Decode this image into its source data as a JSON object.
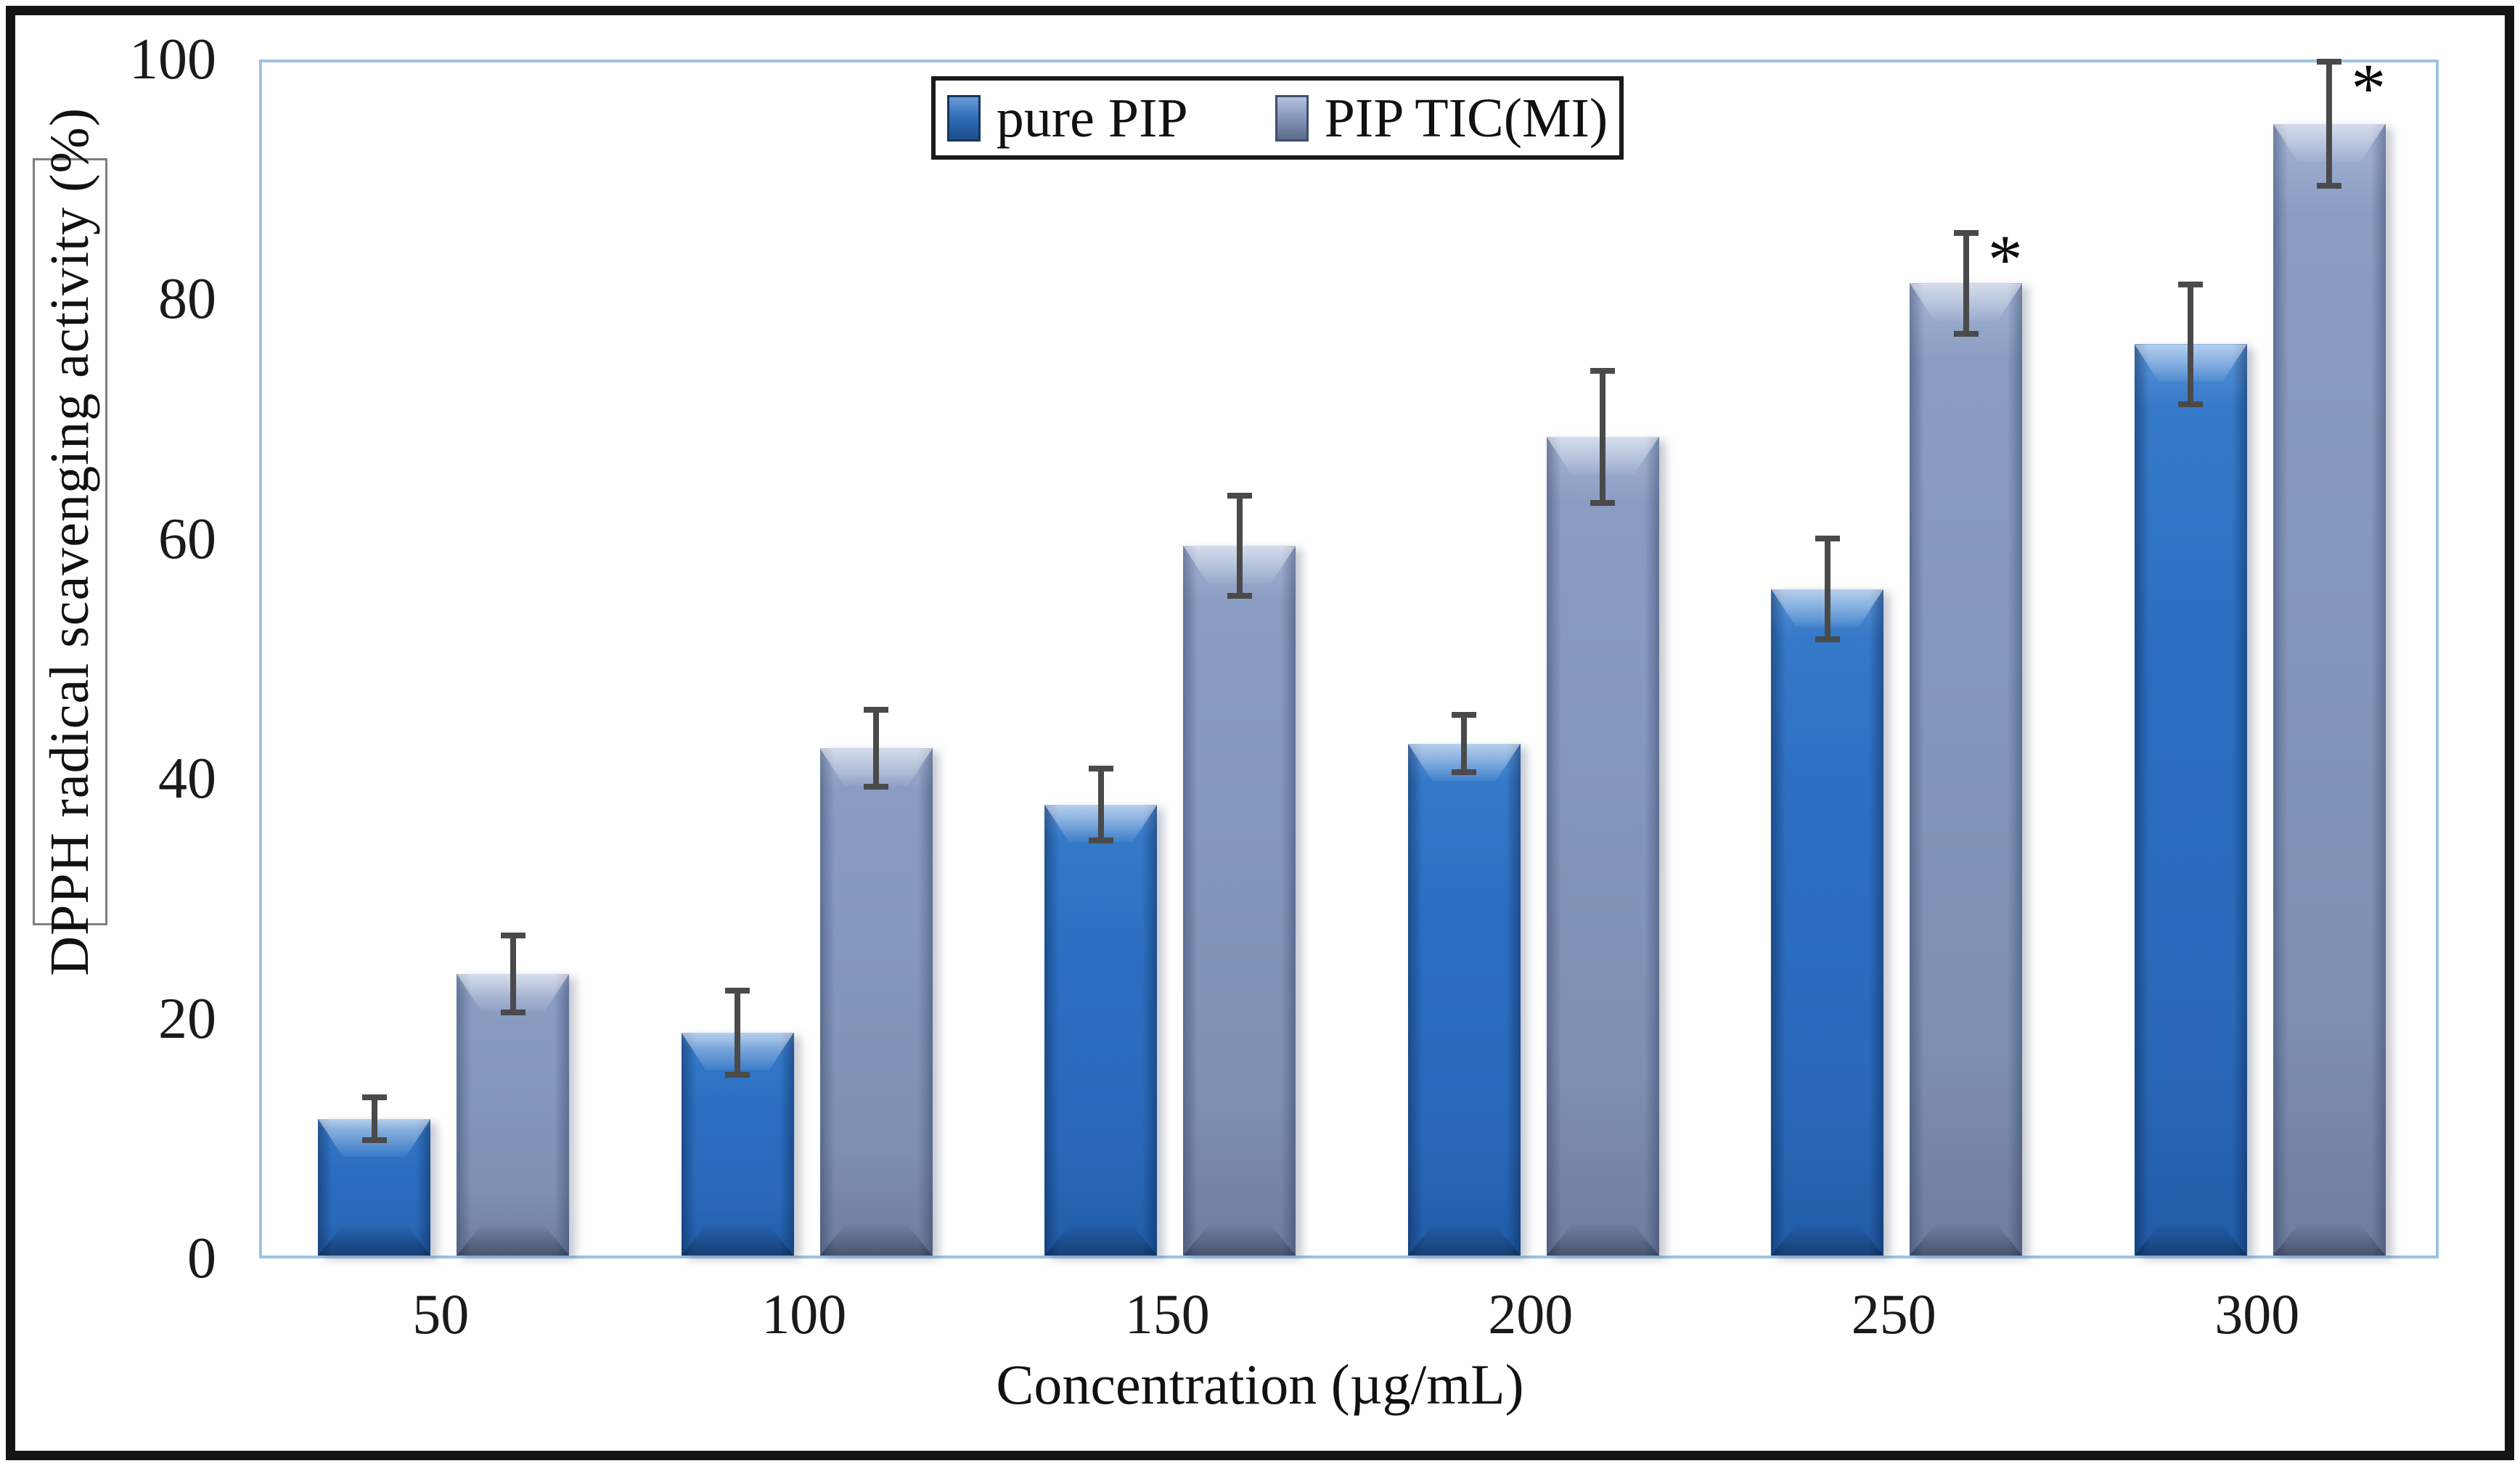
{
  "figure": {
    "background": "#ffffff",
    "outer_border_color": "#141414",
    "plot_border_color": "#9cc2e5"
  },
  "chart_data": {
    "type": "bar",
    "title": "",
    "categories": [
      "50",
      "100",
      "150",
      "200",
      "250",
      "300"
    ],
    "xlabel": "Concentration (µg/mL)",
    "ylabel": "DPPH radical scavenging activity (%)",
    "ylim": [
      0,
      100
    ],
    "yticks": [
      0,
      20,
      40,
      60,
      80,
      100
    ],
    "grid": false,
    "legend_position": "top-center",
    "error_bar_color": "#4a4a4a",
    "significance_marker": "*",
    "series": [
      {
        "name": "pure PIP",
        "color": "#2b6ec1",
        "values": [
          11.4,
          18.6,
          37.6,
          42.7,
          55.6,
          76.0
        ],
        "errors": [
          1.8,
          3.5,
          3.0,
          2.4,
          4.2,
          5.0
        ],
        "significant": [
          false,
          false,
          false,
          false,
          false,
          false
        ]
      },
      {
        "name": "PIP TIC(MI)",
        "color": "#8497bd",
        "values": [
          23.5,
          42.3,
          59.2,
          68.3,
          81.1,
          94.4
        ],
        "errors": [
          3.2,
          3.2,
          4.2,
          5.5,
          4.2,
          5.2
        ],
        "significant": [
          false,
          false,
          false,
          false,
          true,
          true
        ]
      }
    ]
  }
}
